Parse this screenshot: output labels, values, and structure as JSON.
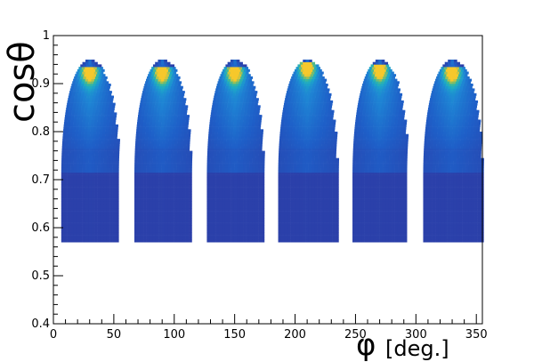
{
  "chart_data": {
    "type": "heatmap",
    "title": "",
    "xlabel": "φ",
    "xlabel_unit": "[deg.]",
    "ylabel": "cosθ",
    "xlim": [
      0,
      355
    ],
    "ylim": [
      0.4,
      1.0
    ],
    "x_ticks": [
      "0",
      "50",
      "100",
      "150",
      "200",
      "250",
      "300",
      "350"
    ],
    "y_ticks": [
      "0.4",
      "0.5",
      "0.6",
      "0.7",
      "0.8",
      "0.9",
      "1"
    ],
    "bin_width_deg": 2.5,
    "bin_height_cos": 0.005,
    "colormap": "parula",
    "colors": {
      "low": "#2c3ea8",
      "mid": "#1e84d4",
      "high": "#34b7a0",
      "peak": "#f6c82b"
    },
    "clusters": [
      {
        "phi_center": 30,
        "phi_min": 5,
        "phi_max": 52,
        "cos_min": 0.57,
        "cos_max": 0.95,
        "peak_cos": 0.925
      },
      {
        "phi_center": 90,
        "phi_min": 67,
        "phi_max": 113,
        "cos_min": 0.57,
        "cos_max": 0.95,
        "peak_cos": 0.925
      },
      {
        "phi_center": 150,
        "phi_min": 129,
        "phi_max": 175,
        "cos_min": 0.57,
        "cos_max": 0.95,
        "peak_cos": 0.925
      },
      {
        "phi_center": 210,
        "phi_min": 187,
        "phi_max": 235,
        "cos_min": 0.57,
        "cos_max": 0.95,
        "peak_cos": 0.935
      },
      {
        "phi_center": 270,
        "phi_min": 248,
        "phi_max": 293,
        "cos_min": 0.57,
        "cos_max": 0.95,
        "peak_cos": 0.93
      },
      {
        "phi_center": 330,
        "phi_min": 307,
        "phi_max": 355,
        "cos_min": 0.57,
        "cos_max": 0.95,
        "peak_cos": 0.925
      }
    ]
  }
}
